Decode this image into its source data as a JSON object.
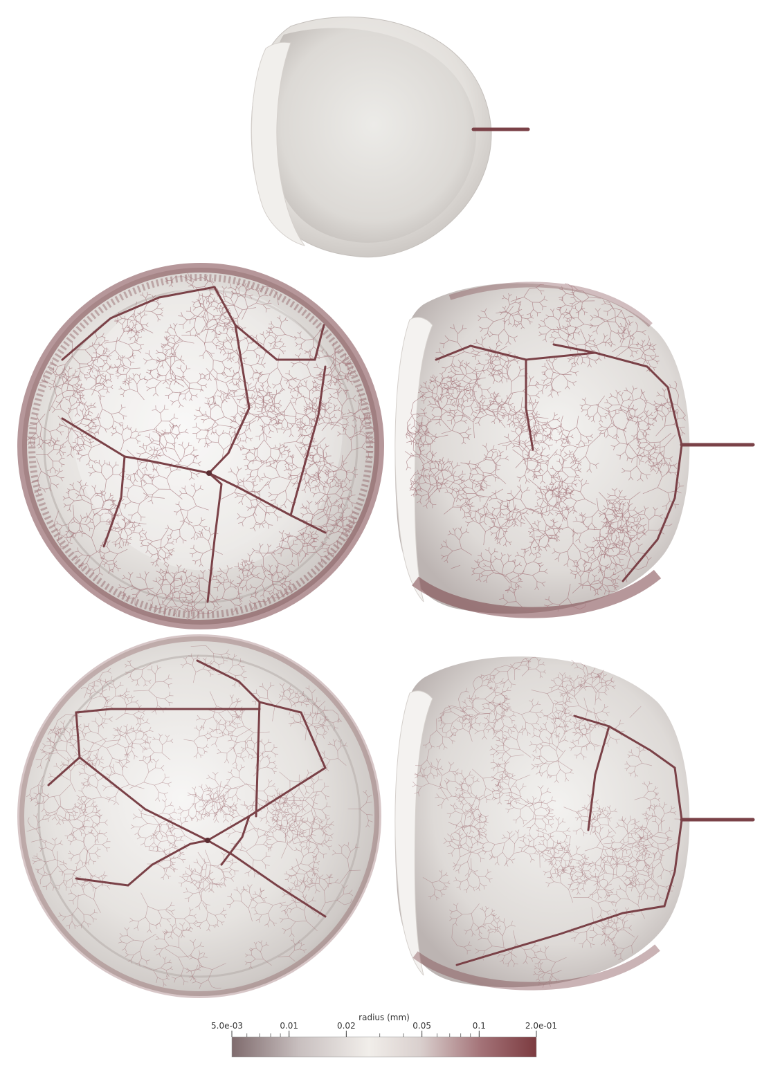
{
  "figure": {
    "colors": {
      "shell": "#e9e7e4",
      "shell_shadow": "#b9b4b0",
      "vessel_dark": "#7a4147",
      "vessel_light": "#a5777c",
      "colormap_low": "#7f6b6d",
      "colormap_mid": "#f1eeea",
      "colormap_high": "#7c3b40"
    },
    "panels": [
      {
        "id": "top-shell",
        "view": "side",
        "content": "empty hemispherical shell with stem"
      },
      {
        "id": "middle-left",
        "view": "front",
        "content": "vascular tree, dense"
      },
      {
        "id": "middle-right",
        "view": "side",
        "content": "vascular tree, dense"
      },
      {
        "id": "bottom-left",
        "view": "front",
        "content": "vascular tree, sparse"
      },
      {
        "id": "bottom-right",
        "view": "side",
        "content": "vascular tree, sparse"
      }
    ]
  },
  "colorbar": {
    "title": "radius (mm)",
    "scale": "log",
    "range": [
      0.005,
      0.2
    ],
    "tick_labels": [
      {
        "value": 0.005,
        "label": "5.0e-03"
      },
      {
        "value": 0.01,
        "label": "0.01"
      },
      {
        "value": 0.02,
        "label": "0.02"
      },
      {
        "value": 0.05,
        "label": "0.05"
      },
      {
        "value": 0.1,
        "label": "0.1"
      },
      {
        "value": 0.2,
        "label": "2.0e-01"
      }
    ]
  }
}
